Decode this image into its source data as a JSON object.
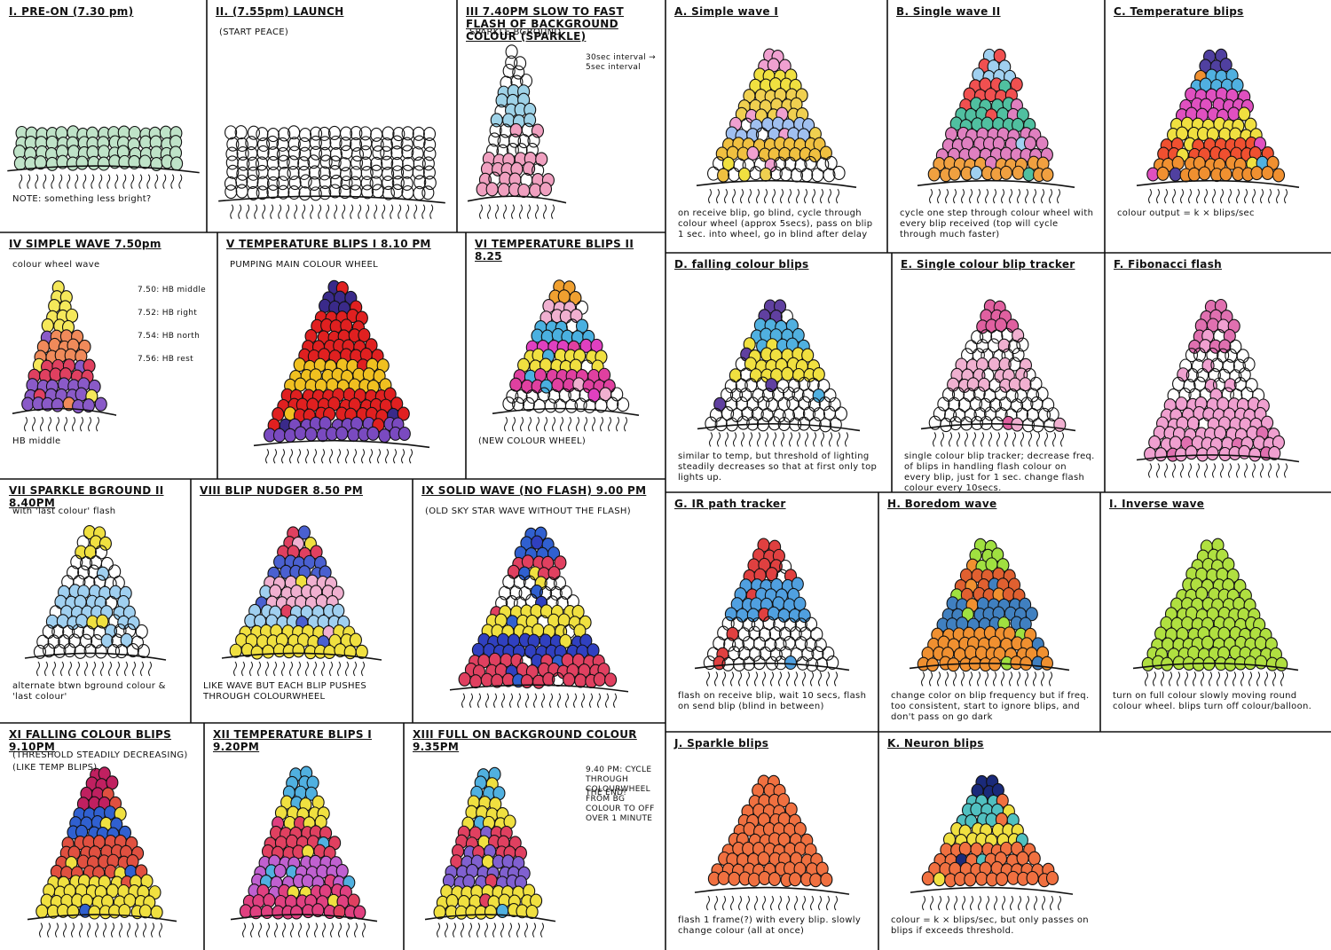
{
  "left_sheet": {
    "panels": [
      {
        "title": "I. PRE-ON (7.30 pm)",
        "caption": "NOTE: something less bright?"
      },
      {
        "title": "II. (7.55pm) LAUNCH",
        "subtitle": "(START PEACE)"
      },
      {
        "title": "III 7.40PM SLOW TO FAST FLASH OF BACKGROUND COLOUR (SPARKLE)",
        "subtitle": "SPARKLE BGROUND",
        "notes": [
          "30sec interval → 5sec interval"
        ]
      },
      {
        "title": "IV SIMPLE WAVE 7.50pm",
        "subtitle": "colour wheel wave",
        "notes": [
          "7.50: HB middle",
          "7.52: HB right",
          "7.54: HB north",
          "7.56: HB rest"
        ],
        "caption": "HB middle"
      },
      {
        "title": "V TEMPERATURE BLIPS I 8.10 PM",
        "subtitle": "PUMPING MAIN COLOUR WHEEL"
      },
      {
        "title": "VI TEMPERATURE BLIPS II 8.25",
        "caption": "(NEW COLOUR WHEEL)"
      },
      {
        "title": "VII SPARKLE BGROUND II 8.40PM",
        "subtitle": "with 'last colour' flash",
        "caption": "alternate btwn bground colour & 'last colour'"
      },
      {
        "title": "VIII BLIP NUDGER 8.50 PM",
        "caption": "LIKE WAVE BUT EACH BLIP PUSHES THROUGH COLOURWHEEL"
      },
      {
        "title": "IX SOLID WAVE (NO FLASH) 9.00 PM",
        "subtitle": "(OLD SKY STAR WAVE WITHOUT THE FLASH)"
      },
      {
        "title": "XI FALLING COLOUR BLIPS 9.10PM",
        "subtitle": "(THRESHOLD STEADILY DECREASING) (LIKE TEMP BLIPS)"
      },
      {
        "title": "XII TEMPERATURE BLIPS I 9.20PM"
      },
      {
        "title": "XIII FULL ON BACKGROUND COLOUR 9.35PM",
        "notes": [
          "9.40 PM: CYCLE THROUGH COLOURWHEEL FROM BG COLOUR TO OFF OVER 1 MINUTE",
          "THE END!"
        ]
      }
    ]
  },
  "right_sheet": {
    "panels": [
      {
        "title": "A. Simple wave I",
        "caption": "on receive blip, go blind, cycle through colour wheel (approx 5secs), pass on blip 1 sec. into wheel, go in blind after delay"
      },
      {
        "title": "B. Single wave II",
        "caption": "cycle one step through colour wheel with every blip received (top will cycle through much faster)"
      },
      {
        "title": "C. Temperature blips",
        "caption": "colour output = k × blips/sec"
      },
      {
        "title": "D. falling colour blips",
        "caption": "similar to temp, but threshold of lighting steadily decreases so that at first only top lights up."
      },
      {
        "title": "E. Single colour blip tracker",
        "caption": "single colour blip tracker; decrease freq. of blips in handling flash colour on every blip, just for 1 sec. change flash colour every 10secs."
      },
      {
        "title": "F. Fibonacci flash"
      },
      {
        "title": "G. IR path tracker",
        "caption": "flash on receive blip, wait 10 secs, flash on send blip (blind in between)"
      },
      {
        "title": "H. Boredom wave",
        "caption": "change color on blip frequency but if freq. too consistent, start to ignore blips, and don't pass on go dark"
      },
      {
        "title": "I. Inverse wave",
        "caption": "turn on full colour slowly moving round colour wheel. blips turn off colour/balloon."
      },
      {
        "title": "J. Sparkle blips",
        "caption": "flash 1 frame(?) with every blip. slowly change colour (all at once)"
      },
      {
        "title": "K. Neuron blips",
        "caption": "colour = k × blips/sec, but only passes on blips if exceeds threshold."
      }
    ]
  }
}
